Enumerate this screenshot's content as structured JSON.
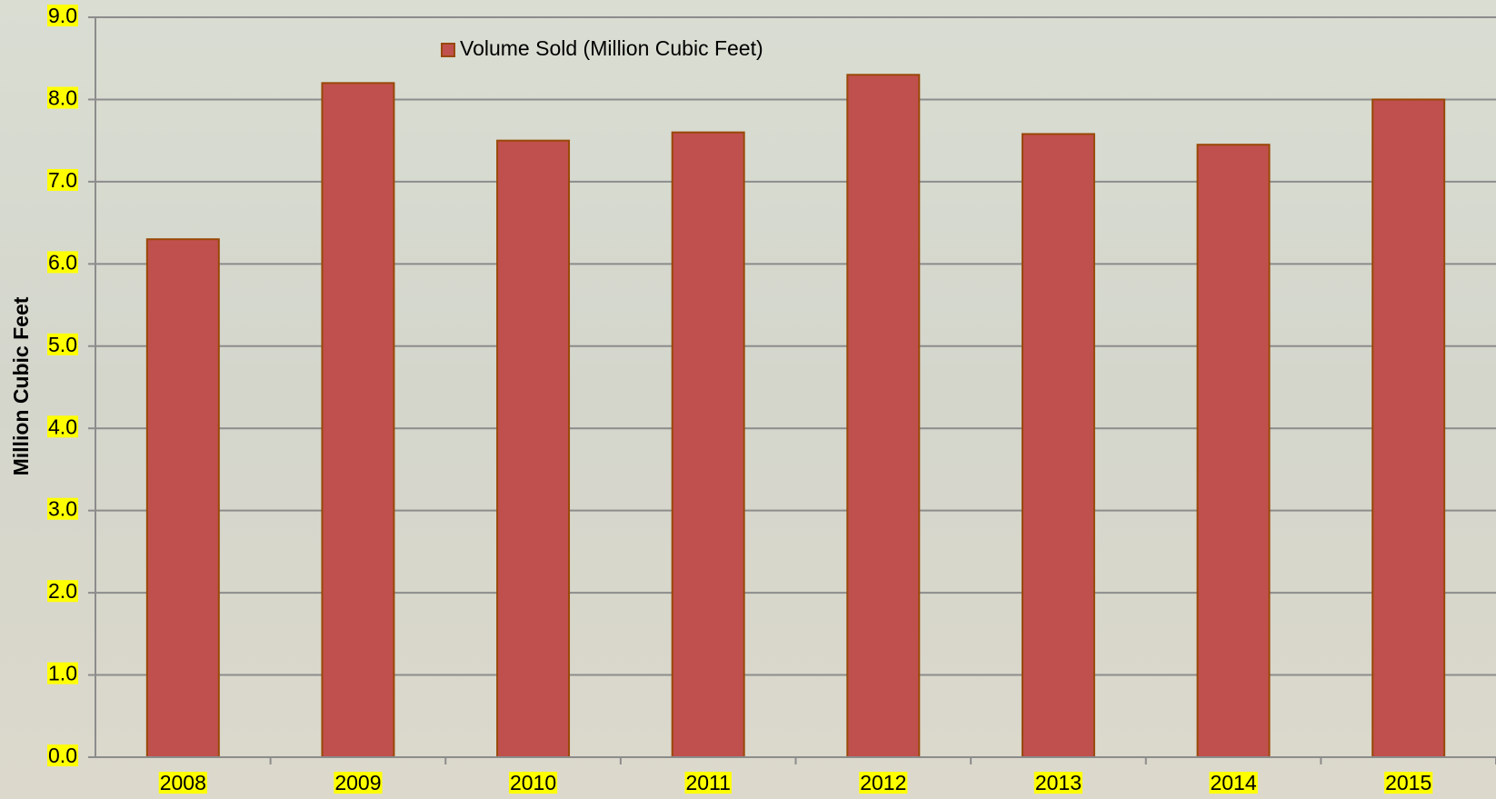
{
  "chart_data": {
    "type": "bar",
    "y_axis_label": "Million Cubic Feet",
    "categories": [
      "2008",
      "2009",
      "2010",
      "2011",
      "2012",
      "2013",
      "2014",
      "2015"
    ],
    "series": [
      {
        "name": "Volume Sold (Million Cubic Feet)",
        "color": "#c0504d",
        "values": [
          6.3,
          8.2,
          7.5,
          7.6,
          8.3,
          7.58,
          7.45,
          8.0
        ]
      }
    ],
    "ylim": [
      0,
      9
    ],
    "yticks": [
      {
        "value": 0,
        "label": "0.0"
      },
      {
        "value": 1,
        "label": "1.0"
      },
      {
        "value": 2,
        "label": "2.0"
      },
      {
        "value": 3,
        "label": "3.0"
      },
      {
        "value": 4,
        "label": "4.0"
      },
      {
        "value": 5,
        "label": "5.0"
      },
      {
        "value": 6,
        "label": "6.0"
      },
      {
        "value": 7,
        "label": "7.0"
      },
      {
        "value": 8,
        "label": "8.0"
      },
      {
        "value": 9,
        "label": "9.0"
      }
    ],
    "grid": true,
    "legend": "top"
  }
}
